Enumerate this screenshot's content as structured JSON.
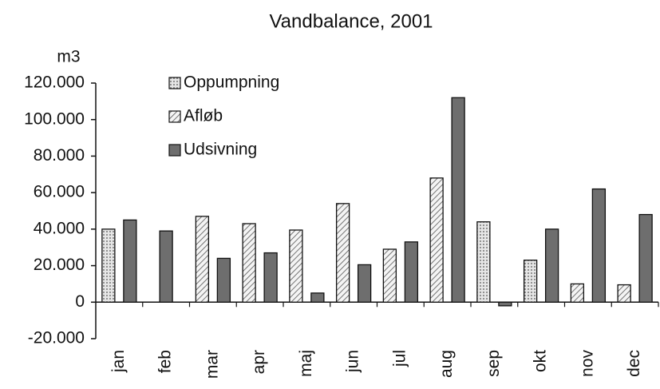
{
  "chart_data": {
    "type": "bar",
    "title": "Vandbalance, 2001",
    "y_label": "m3",
    "categories": [
      "jan",
      "feb",
      "mar",
      "apr",
      "maj",
      "jun",
      "jul",
      "aug",
      "sep",
      "okt",
      "nov",
      "dec"
    ],
    "series": [
      {
        "name": "Oppumpning",
        "color": "#d9d9d9",
        "values": [
          40000,
          null,
          null,
          null,
          null,
          null,
          null,
          null,
          44000,
          23000,
          null,
          null
        ]
      },
      {
        "name": "Afløb",
        "color": "#f2f2f2",
        "values": [
          null,
          null,
          47000,
          43000,
          39500,
          54000,
          29000,
          68000,
          null,
          null,
          10000,
          9500
        ]
      },
      {
        "name": "Udsivning",
        "color": "#6e6e6e",
        "values": [
          45000,
          39000,
          24000,
          27000,
          5000,
          20500,
          33000,
          112000,
          -2000,
          40000,
          62000,
          48000
        ]
      }
    ],
    "ylim": [
      -20000,
      120000
    ],
    "yticks": [
      {
        "value": -20000,
        "label": "-20.000"
      },
      0,
      {
        "value": 20000,
        "label": "20.000"
      },
      {
        "value": 40000,
        "label": "40.000"
      },
      {
        "value": 60000,
        "label": "60.000"
      },
      {
        "value": 80000,
        "label": "80.000"
      },
      {
        "value": 100000,
        "label": "100.000"
      },
      {
        "value": 120000,
        "label": "120.000"
      }
    ],
    "grid": false
  }
}
